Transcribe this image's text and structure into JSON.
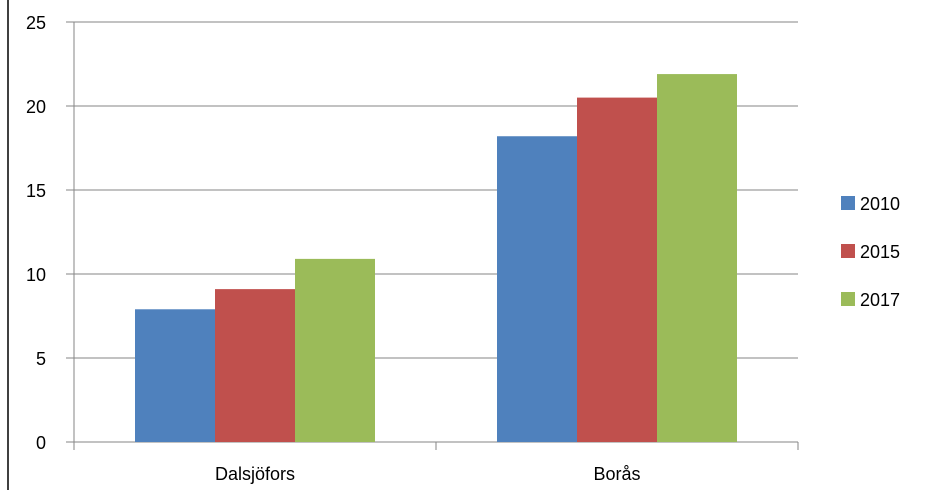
{
  "chart_data": {
    "type": "bar",
    "categories": [
      "Dalsjöfors",
      "Borås"
    ],
    "series": [
      {
        "name": "2010",
        "values": [
          7.9,
          18.2
        ],
        "color": "#4F81BD"
      },
      {
        "name": "2015",
        "values": [
          9.1,
          20.5
        ],
        "color": "#C0504D"
      },
      {
        "name": "2017",
        "values": [
          10.9,
          21.9
        ],
        "color": "#9BBB59"
      }
    ],
    "title": "",
    "xlabel": "",
    "ylabel": "",
    "ylim": [
      0,
      25
    ],
    "yticks": [
      0,
      5,
      10,
      15,
      20,
      25
    ],
    "grid": true,
    "legend_position": "right"
  }
}
